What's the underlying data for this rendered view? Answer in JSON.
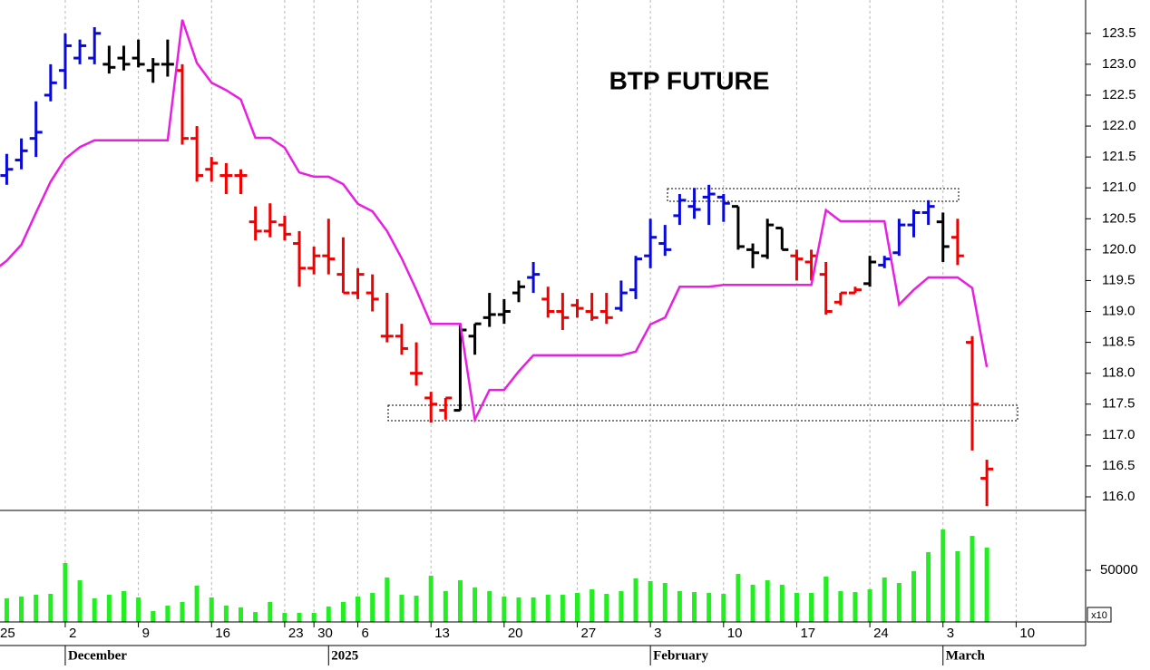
{
  "chart_data": {
    "type": "ohlc",
    "title": "BTP FUTURE",
    "categories": [
      "25",
      null,
      null,
      null,
      null,
      "2",
      null,
      null,
      null,
      null,
      "9",
      null,
      null,
      null,
      null,
      "16",
      null,
      null,
      null,
      null,
      "23",
      null,
      "30",
      null,
      null,
      "6",
      null,
      null,
      null,
      null,
      "13",
      null,
      null,
      null,
      null,
      "20",
      null,
      null,
      null,
      null,
      "27",
      null,
      null,
      null,
      null,
      "3",
      null,
      null,
      null,
      null,
      "10",
      null,
      null,
      null,
      null,
      "17",
      null,
      null,
      null,
      null,
      "24",
      null,
      null,
      null,
      null,
      "3",
      null,
      null,
      null,
      null,
      "10"
    ],
    "months": [
      null,
      null,
      null,
      null,
      null,
      "December",
      null,
      null,
      null,
      null,
      null,
      null,
      null,
      null,
      null,
      null,
      null,
      null,
      null,
      null,
      null,
      null,
      null,
      "2025",
      null,
      null,
      null,
      null,
      null,
      null,
      null,
      null,
      null,
      null,
      null,
      null,
      null,
      null,
      null,
      null,
      null,
      null,
      null,
      null,
      null,
      "February",
      null,
      null,
      null,
      null,
      null,
      null,
      null,
      null,
      null,
      null,
      null,
      null,
      null,
      null,
      null,
      null,
      null,
      null,
      null,
      "March",
      null,
      null,
      null,
      null,
      null
    ],
    "open": [
      null,
      121.2,
      121.45,
      121.8,
      122.5,
      122.9,
      123.1,
      123.1,
      123.0,
      123.1,
      123.1,
      122.9,
      123.0,
      122.9,
      121.8,
      121.3,
      121.2,
      121.2,
      120.45,
      120.3,
      120.4,
      120.1,
      119.7,
      119.9,
      119.6,
      119.3,
      119.3,
      118.6,
      118.6,
      118.0,
      117.6,
      117.4,
      117.4,
      118.6,
      118.9,
      118.95,
      119.3,
      119.55,
      119.2,
      119.0,
      119.1,
      119.0,
      119.0,
      119.05,
      119.35,
      119.9,
      120.1,
      120.55,
      120.7,
      120.85,
      120.85,
      120.7,
      120.0,
      119.9,
      120.35,
      119.9,
      119.8,
      119.6,
      119.15,
      119.3,
      119.45,
      119.75,
      119.95,
      120.4,
      120.6,
      120.45,
      120.2,
      118.5,
      116.3,
      null,
      null
    ],
    "high": [
      null,
      121.55,
      121.8,
      122.4,
      123.0,
      123.5,
      123.4,
      123.6,
      123.3,
      123.3,
      123.4,
      123.1,
      123.4,
      123.0,
      122.0,
      121.5,
      121.4,
      121.3,
      120.7,
      120.75,
      120.55,
      120.3,
      120.05,
      120.5,
      120.2,
      119.7,
      119.6,
      119.3,
      118.8,
      118.5,
      117.7,
      117.6,
      118.8,
      118.8,
      119.3,
      119.2,
      119.5,
      119.8,
      119.4,
      119.3,
      119.2,
      119.3,
      119.3,
      119.5,
      119.9,
      120.5,
      120.4,
      120.9,
      121.0,
      121.05,
      120.9,
      120.7,
      120.1,
      120.5,
      120.35,
      120.0,
      120.0,
      119.8,
      119.3,
      119.4,
      119.9,
      119.9,
      120.5,
      120.65,
      120.8,
      120.6,
      120.5,
      118.6,
      116.6,
      null,
      null
    ],
    "low": [
      null,
      121.05,
      121.3,
      121.5,
      122.4,
      122.6,
      123.0,
      123.0,
      122.85,
      122.9,
      122.95,
      122.7,
      122.8,
      121.7,
      121.1,
      121.1,
      120.9,
      120.9,
      120.15,
      120.2,
      120.15,
      119.4,
      119.6,
      119.6,
      119.3,
      119.2,
      119.0,
      118.5,
      118.3,
      117.8,
      117.2,
      117.25,
      117.4,
      118.3,
      118.75,
      118.8,
      119.15,
      119.3,
      118.9,
      118.7,
      118.9,
      118.85,
      118.8,
      119.0,
      119.2,
      119.7,
      119.9,
      120.4,
      120.5,
      120.4,
      120.45,
      120.0,
      119.7,
      119.85,
      120.0,
      119.5,
      119.5,
      118.95,
      119.1,
      119.3,
      119.4,
      119.7,
      119.9,
      120.2,
      120.4,
      119.8,
      119.75,
      116.75,
      115.85,
      null,
      null
    ],
    "close": [
      null,
      121.3,
      121.6,
      121.9,
      122.7,
      123.3,
      123.3,
      123.5,
      122.95,
      123.0,
      123.0,
      123.0,
      123.0,
      121.8,
      121.2,
      121.4,
      121.2,
      121.2,
      120.3,
      120.45,
      120.25,
      119.7,
      119.9,
      119.85,
      119.3,
      119.6,
      119.2,
      118.6,
      118.4,
      118.0,
      117.5,
      117.6,
      118.7,
      118.8,
      118.95,
      119.0,
      119.4,
      119.6,
      119.0,
      118.9,
      119.05,
      118.9,
      118.9,
      119.3,
      119.85,
      120.2,
      120.0,
      120.8,
      120.65,
      120.9,
      120.75,
      120.05,
      119.95,
      120.4,
      120.0,
      119.85,
      119.9,
      119.0,
      119.3,
      119.35,
      119.8,
      119.85,
      120.4,
      120.6,
      120.7,
      120.05,
      119.9,
      117.5,
      116.45,
      null,
      null
    ],
    "colors": [
      null,
      "#0a0ad8",
      "#0a0ad8",
      "#0a0ad8",
      "#0a0ad8",
      "#0a0ad8",
      "#0a0ad8",
      "#0a0ad8",
      "#000000",
      "#000000",
      "#000000",
      "#000000",
      "#000000",
      "#f00000",
      "#f00000",
      "#f00000",
      "#f00000",
      "#f00000",
      "#f00000",
      "#f00000",
      "#f00000",
      "#f00000",
      "#f00000",
      "#f00000",
      "#f00000",
      "#f00000",
      "#f00000",
      "#f00000",
      "#f00000",
      "#f00000",
      "#f00000",
      "#f00000",
      "#000000",
      "#000000",
      "#000000",
      "#000000",
      "#000000",
      "#0a0ad8",
      "#f00000",
      "#f00000",
      "#f00000",
      "#f00000",
      "#f00000",
      "#0a0ad8",
      "#0a0ad8",
      "#0a0ad8",
      "#0a0ad8",
      "#0a0ad8",
      "#0a0ad8",
      "#0a0ad8",
      "#0a0ad8",
      "#000000",
      "#000000",
      "#000000",
      "#000000",
      "#f00000",
      "#f00000",
      "#f00000",
      "#f00000",
      "#f00000",
      "#000000",
      "#0a0ad8",
      "#0a0ad8",
      "#0a0ad8",
      "#0a0ad8",
      "#000000",
      "#f00000",
      "#f00000",
      "#f00000",
      null,
      null
    ],
    "stop": {
      "color": "#e81ee0",
      "values": [
        119.64,
        119.82,
        120.08,
        120.6,
        121.1,
        121.47,
        121.66,
        121.77,
        121.77,
        121.77,
        121.77,
        121.77,
        121.77,
        123.72,
        123.02,
        122.7,
        122.58,
        122.43,
        121.81,
        121.81,
        121.65,
        121.25,
        121.18,
        121.18,
        121.06,
        120.74,
        120.62,
        120.3,
        119.86,
        119.35,
        118.8,
        118.8,
        118.8,
        117.25,
        117.73,
        117.73,
        118.03,
        118.29,
        118.29,
        118.29,
        118.29,
        118.29,
        118.29,
        118.29,
        118.35,
        118.79,
        118.9,
        119.4,
        119.4,
        119.4,
        119.43,
        119.43,
        119.43,
        119.43,
        119.43,
        119.43,
        119.43,
        120.64,
        120.46,
        120.46,
        120.46,
        120.46,
        119.11,
        119.35,
        119.55,
        119.55,
        119.55,
        119.38,
        118.1,
        null,
        null
      ]
    },
    "ylim": [
      115.78,
      124.04
    ],
    "yticks": [
      {
        "value": 116,
        "label": "116.0"
      },
      {
        "value": 116.5,
        "label": "116.5"
      },
      {
        "value": 117,
        "label": "117.0"
      },
      {
        "value": 117.5,
        "label": "117.5"
      },
      {
        "value": 118,
        "label": "118.0"
      },
      {
        "value": 118.5,
        "label": "118.5"
      },
      {
        "value": 119,
        "label": "119.0"
      },
      {
        "value": 119.5,
        "label": "119.5"
      },
      {
        "value": 120,
        "label": "120.0"
      },
      {
        "value": 120.5,
        "label": "120.5"
      },
      {
        "value": 121,
        "label": "121.0"
      },
      {
        "value": 121.5,
        "label": "121.5"
      },
      {
        "value": 122,
        "label": "122.0"
      },
      {
        "value": 122.5,
        "label": "122.5"
      },
      {
        "value": 123,
        "label": "123.0"
      },
      {
        "value": 123.5,
        "label": "123.5"
      }
    ],
    "volume": {
      "color": "#22ee22",
      "multiplier": "x10",
      "values": [
        null,
        22800,
        24600,
        26300,
        27200,
        57000,
        40300,
        22800,
        26300,
        29800,
        23700,
        10500,
        15800,
        19300,
        35100,
        23700,
        15800,
        14000,
        9600,
        19300,
        8800,
        8800,
        8800,
        14900,
        19300,
        24600,
        28100,
        43000,
        26300,
        25400,
        44700,
        29800,
        40300,
        33300,
        29800,
        24600,
        23700,
        23700,
        26300,
        26300,
        28100,
        31600,
        27200,
        29800,
        42100,
        39500,
        37700,
        29800,
        28900,
        28100,
        27200,
        46500,
        36000,
        40300,
        36000,
        28100,
        28100,
        43900,
        29800,
        28900,
        31600,
        43000,
        37700,
        49100,
        67500,
        89500,
        68400,
        83300,
        71900,
        null,
        null
      ],
      "ylim": [
        0,
        107900
      ],
      "yticks": [
        50000
      ]
    },
    "grid": true
  }
}
